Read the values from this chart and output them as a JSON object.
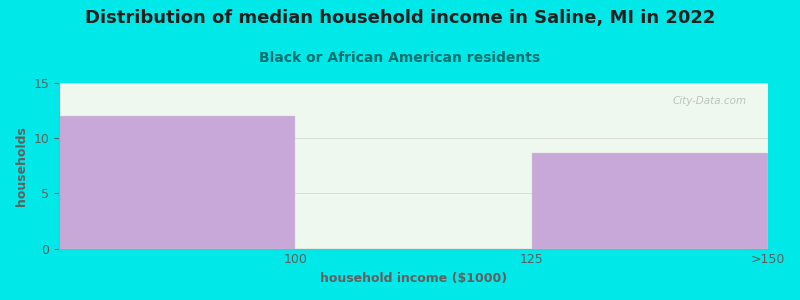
{
  "title": "Distribution of median household income in Saline, MI in 2022",
  "subtitle": "Black or African American residents",
  "xlabel": "household income ($1000)",
  "ylabel": "households",
  "categories": [
    "100",
    "125",
    ">150"
  ],
  "values": [
    12,
    0,
    8.7
  ],
  "bar_colors": [
    "#c8a8d8",
    "#e8f4e8",
    "#c8a8d8"
  ],
  "ylim": [
    0,
    15
  ],
  "yticks": [
    0,
    5,
    10,
    15
  ],
  "background_color": "#00e8e8",
  "plot_bg_color": "#eef8ee",
  "title_color": "#202020",
  "subtitle_color": "#007070",
  "axis_label_color": "#606060",
  "tick_color": "#606060",
  "watermark": "City-Data.com",
  "title_fontsize": 13,
  "subtitle_fontsize": 10,
  "label_fontsize": 9,
  "bar_width": 1.0
}
